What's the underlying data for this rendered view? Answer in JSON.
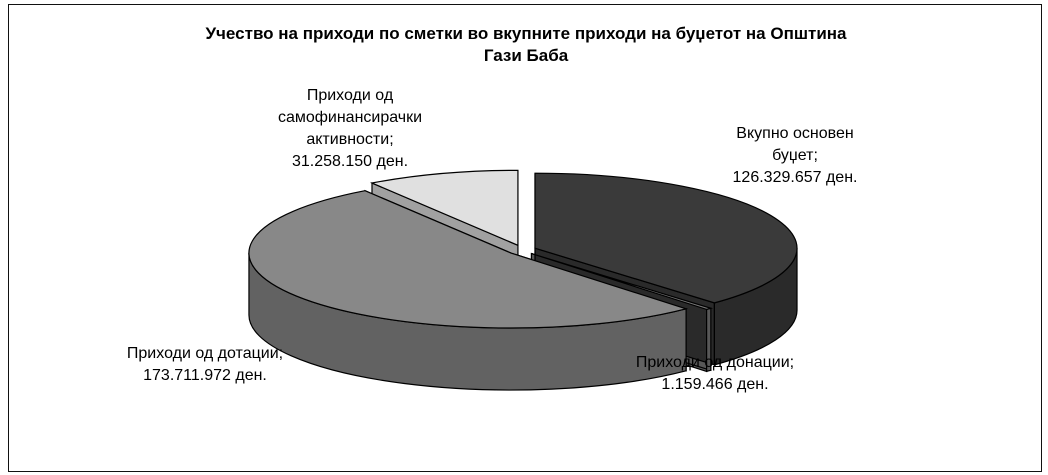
{
  "chart_data": {
    "type": "pie",
    "title": "Учество на приходи по сметки во вкупните приходи на буџетот на Општина Гази Баба",
    "title_lines": [
      "Учество на приходи по сметки во вкупните приходи на буџетот на Општина",
      "Гази Баба"
    ],
    "legend": "none",
    "slices": [
      {
        "name": "Вкупно основен буџет",
        "value": 126329657,
        "label_lines": [
          "Вкупно основен",
          "буџет;",
          "126.329.657 ден."
        ],
        "color": "#3a3a3a"
      },
      {
        "name": "Приходи од донации",
        "value": 1159466,
        "label_lines": [
          "Приходи од донации;",
          "1.159.466 ден."
        ],
        "color": "#7a7a7a"
      },
      {
        "name": "Приходи од дотации",
        "value": 173711972,
        "label_lines": [
          "Приходи од дотации;",
          "173.711.972 ден."
        ],
        "color": "#888888"
      },
      {
        "name": "Приходи од самофинансирачки активности",
        "value": 31258150,
        "label_lines": [
          "Приходи од",
          "самофинансирачки",
          "активности;",
          "31.258.150 ден."
        ],
        "color": "#e0e0e0"
      }
    ]
  }
}
